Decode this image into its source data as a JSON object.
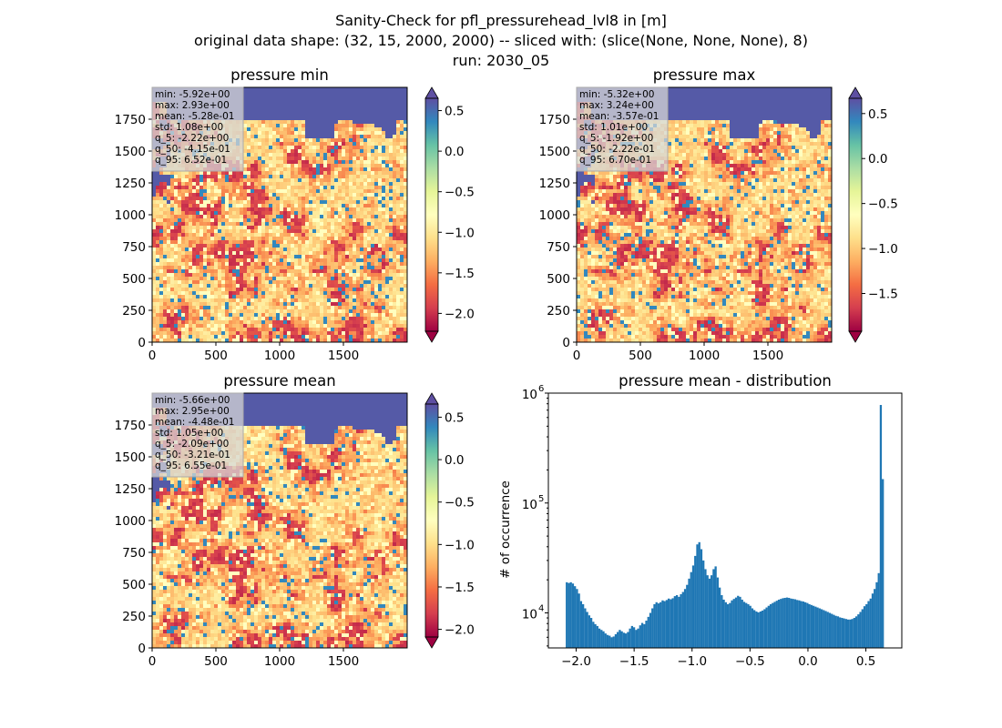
{
  "figure": {
    "suptitle": [
      "Sanity-Check for pfl_pressurehead_lvl8 in [m]",
      "original data shape: (32, 15, 2000, 2000) -- sliced with: (slice(None, None, None), 8)",
      "run: 2030_05"
    ]
  },
  "chart_data": [
    {
      "type": "heatmap",
      "title": "pressure min",
      "colormap": "Spectral",
      "xticks": [
        "0",
        "500",
        "1000",
        "1500"
      ],
      "yticks": [
        "0",
        "250",
        "500",
        "750",
        "1000",
        "1250",
        "1500",
        "1750"
      ],
      "xlim": [
        0,
        2000
      ],
      "ylim": [
        0,
        2000
      ],
      "colorbar": {
        "ticks": [
          "0.5",
          "0.0",
          "−0.5",
          "−1.0",
          "−1.5",
          "−2.0"
        ],
        "tick_values": [
          0.5,
          0.0,
          -0.5,
          -1.0,
          -1.5,
          -2.0
        ],
        "range": [
          -2.22,
          0.652
        ],
        "extend": "both"
      },
      "stats": [
        "min: -5.92e+00",
        "max: 2.93e+00",
        "mean: -5.28e-01",
        "std: 1.08e+00",
        "q_5: -2.22e+00",
        "q_50: -4.15e-01",
        "q_95: 6.52e-01"
      ]
    },
    {
      "type": "heatmap",
      "title": "pressure max",
      "colormap": "Spectral",
      "xticks": [
        "0",
        "500",
        "1000",
        "1500"
      ],
      "yticks": [
        "0",
        "250",
        "500",
        "750",
        "1000",
        "1250",
        "1500",
        "1750"
      ],
      "xlim": [
        0,
        2000
      ],
      "ylim": [
        0,
        2000
      ],
      "colorbar": {
        "ticks": [
          "0.5",
          "0.0",
          "−0.5",
          "−1.0",
          "−1.5"
        ],
        "tick_values": [
          0.5,
          0.0,
          -0.5,
          -1.0,
          -1.5
        ],
        "range": [
          -1.92,
          0.67
        ],
        "extend": "both"
      },
      "stats": [
        "min: -5.32e+00",
        "max: 3.24e+00",
        "mean: -3.57e-01",
        "std: 1.01e+00",
        "q_5: -1.92e+00",
        "q_50: -2.22e-01",
        "q_95: 6.70e-01"
      ]
    },
    {
      "type": "heatmap",
      "title": "pressure mean",
      "colormap": "Spectral",
      "xticks": [
        "0",
        "500",
        "1000",
        "1500"
      ],
      "yticks": [
        "0",
        "250",
        "500",
        "750",
        "1000",
        "1250",
        "1500",
        "1750"
      ],
      "xlim": [
        0,
        2000
      ],
      "ylim": [
        0,
        2000
      ],
      "colorbar": {
        "ticks": [
          "0.5",
          "0.0",
          "−0.5",
          "−1.0",
          "−1.5",
          "−2.0"
        ],
        "tick_values": [
          0.5,
          0.0,
          -0.5,
          -1.0,
          -1.5,
          -2.0
        ],
        "range": [
          -2.09,
          0.655
        ],
        "extend": "both"
      },
      "stats": [
        "min: -5.66e+00",
        "max: 2.95e+00",
        "mean: -4.48e-01",
        "std: 1.05e+00",
        "q_5: -2.09e+00",
        "q_50: -3.21e-01",
        "q_95: 6.55e-01"
      ]
    },
    {
      "type": "bar",
      "title": "pressure mean - distribution",
      "ylabel": "# of occurrence",
      "xlabel": "",
      "yscale": "log",
      "color": "#1f77b4",
      "xlim": [
        -2.24,
        0.81
      ],
      "ylim": [
        4800,
        1000000
      ],
      "xticks": [
        "−2.0",
        "−1.5",
        "−1.0",
        "−0.5",
        "0.0",
        "0.5"
      ],
      "xtick_values": [
        -2.0,
        -1.5,
        -1.0,
        -0.5,
        0.0,
        0.5
      ],
      "yticks": [
        "10",
        "10",
        "10"
      ],
      "ytick_exponents": [
        "4",
        "5",
        "6"
      ],
      "ytick_values": [
        10000,
        100000,
        1000000
      ],
      "bin_range": [
        -2.09,
        0.655
      ],
      "values": [
        19000,
        18700,
        19000,
        18500,
        17500,
        16500,
        15000,
        12800,
        12000,
        11000,
        10200,
        9500,
        9000,
        8300,
        7900,
        7600,
        7200,
        7000,
        6800,
        6500,
        6300,
        6200,
        6000,
        6100,
        6400,
        6700,
        7000,
        6800,
        6600,
        6500,
        6700,
        7200,
        7600,
        7400,
        7000,
        7200,
        7700,
        8100,
        7900,
        8500,
        9200,
        10000,
        11000,
        12000,
        12500,
        12200,
        12500,
        13000,
        12800,
        13100,
        13500,
        13300,
        13600,
        14200,
        14500,
        14000,
        14800,
        15500,
        16500,
        18000,
        20500,
        23500,
        27000,
        33000,
        42000,
        44000,
        38000,
        30000,
        25000,
        22000,
        20500,
        22000,
        25000,
        26500,
        21000,
        17000,
        14500,
        13200,
        12500,
        12000,
        12300,
        13000,
        13400,
        13800,
        14300,
        14000,
        13200,
        12600,
        12300,
        12000,
        11600,
        11000,
        10600,
        10300,
        10100,
        10300,
        10500,
        10800,
        11200,
        11600,
        12000,
        12300,
        12600,
        12900,
        13200,
        13400,
        13600,
        13700,
        13800,
        13700,
        13500,
        13400,
        13300,
        13100,
        13000,
        12800,
        12700,
        12500,
        12300,
        12000,
        11800,
        11600,
        11400,
        11200,
        11000,
        10800,
        10600,
        10400,
        10200,
        10000,
        9800,
        9600,
        9400,
        9300,
        9100,
        9000,
        8900,
        8800,
        8700,
        8700,
        8800,
        9000,
        9300,
        9700,
        10200,
        10800,
        11500,
        12000,
        12800,
        13500,
        15000,
        16500,
        19000,
        23000,
        780000,
        165000
      ]
    }
  ]
}
